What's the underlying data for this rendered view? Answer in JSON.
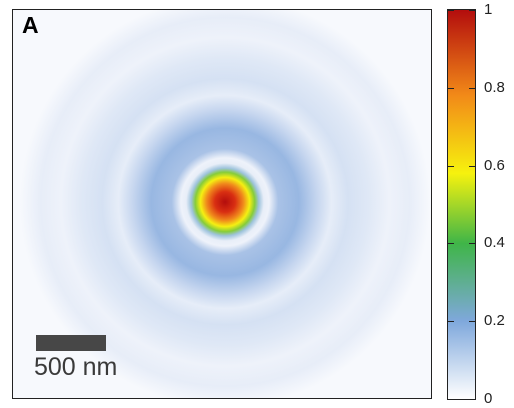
{
  "panel": {
    "label": "A"
  },
  "scale_bar": {
    "label": "500 nm"
  },
  "colorbar": {
    "ticks": [
      "1",
      "0.8",
      "0.6",
      "0.4",
      "0.2",
      "0"
    ],
    "tick_values": [
      1,
      0.8,
      0.6,
      0.4,
      0.2,
      0
    ],
    "colors": [
      "#ffffff",
      "#7fa8dc",
      "#3fb548",
      "#f6f20e",
      "#f28a18",
      "#b30d0d"
    ]
  },
  "intensity_profile": {
    "center_peak": 1.0,
    "ring_peak": 0.25,
    "outer_ring_peak": 0.1
  }
}
